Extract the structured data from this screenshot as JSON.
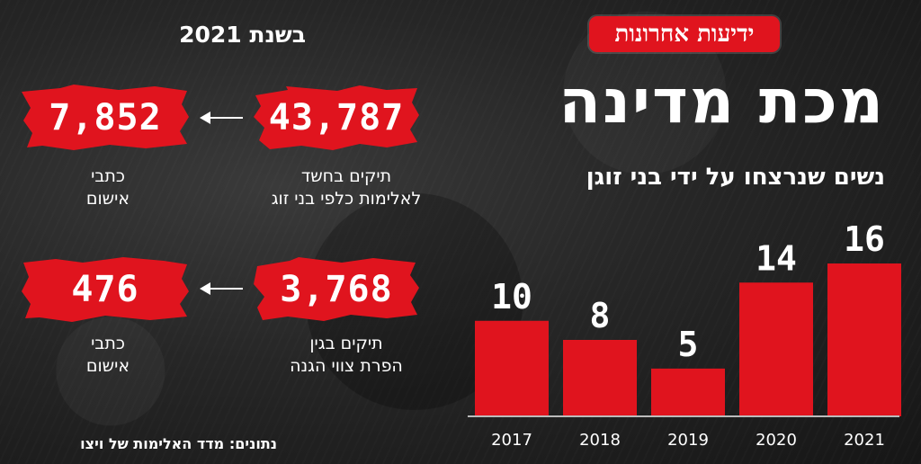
{
  "logo_text": "ידיעות אחרונות",
  "main_title": "מכת מדינה",
  "year_title": "בשנת 2021",
  "source": "נתונים: מדד האלימות של ויצו",
  "stats": [
    {
      "files_value": "43,787",
      "files_caption_line1": "תיקים בחשד",
      "files_caption_line2": "לאלימות כלפי בני זוג",
      "indictments_value": "7,852",
      "indictments_caption_line1": "כתבי",
      "indictments_caption_line2": "אישום"
    },
    {
      "files_value": "3,768",
      "files_caption_line1": "תיקים בגין",
      "files_caption_line2": "הפרת צווי הגנה",
      "indictments_value": "476",
      "indictments_caption_line1": "כתבי",
      "indictments_caption_line2": "אישום"
    }
  ],
  "colors": {
    "accent": "#e0141e",
    "text": "#ffffff",
    "background": "#262626"
  },
  "chart_data": {
    "type": "bar",
    "title": "נשים שנרצחו על ידי בני זוגן",
    "categories": [
      "2017",
      "2018",
      "2019",
      "2020",
      "2021"
    ],
    "values": [
      10,
      8,
      5,
      14,
      16
    ],
    "value_labels": [
      "10",
      "8",
      "5",
      "14",
      "16"
    ],
    "xlabel": "",
    "ylabel": "",
    "ylim": [
      0,
      16
    ],
    "bar_color": "#e0141e",
    "grid": false,
    "legend": "none"
  }
}
